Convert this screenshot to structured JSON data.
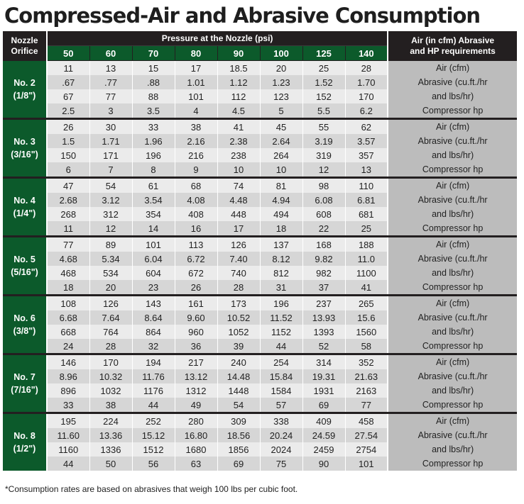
{
  "title": "Compressed-Air and Abrasive Consumption",
  "header": {
    "nozzle_label_line1": "Nozzle",
    "nozzle_label_line2": "Orifice",
    "pressure_label": "Pressure at the Nozzle (psi)",
    "requirements_line1": "Air (in cfm) Abrasive",
    "requirements_line2": "and HP requirements",
    "psi": [
      "50",
      "60",
      "70",
      "80",
      "90",
      "100",
      "125",
      "140"
    ]
  },
  "row_labels": [
    "Air (cfm)",
    "Abrasive (cu.ft./hr",
    "and lbs/hr)",
    "Compressor hp"
  ],
  "nozzles": [
    {
      "name": "No. 2",
      "size": "(1/8\")",
      "rows": [
        [
          "11",
          "13",
          "15",
          "17",
          "18.5",
          "20",
          "25",
          "28"
        ],
        [
          ".67",
          ".77",
          ".88",
          "1.01",
          "1.12",
          "1.23",
          "1.52",
          "1.70"
        ],
        [
          "67",
          "77",
          "88",
          "101",
          "112",
          "123",
          "152",
          "170"
        ],
        [
          "2.5",
          "3",
          "3.5",
          "4",
          "4.5",
          "5",
          "5.5",
          "6.2"
        ]
      ]
    },
    {
      "name": "No. 3",
      "size": "(3/16\")",
      "rows": [
        [
          "26",
          "30",
          "33",
          "38",
          "41",
          "45",
          "55",
          "62"
        ],
        [
          "1.5",
          "1.71",
          "1.96",
          "2.16",
          "2.38",
          "2.64",
          "3.19",
          "3.57"
        ],
        [
          "150",
          "171",
          "196",
          "216",
          "238",
          "264",
          "319",
          "357"
        ],
        [
          "6",
          "7",
          "8",
          "9",
          "10",
          "10",
          "12",
          "13"
        ]
      ]
    },
    {
      "name": "No. 4",
      "size": "(1/4\")",
      "rows": [
        [
          "47",
          "54",
          "61",
          "68",
          "74",
          "81",
          "98",
          "110"
        ],
        [
          "2.68",
          "3.12",
          "3.54",
          "4.08",
          "4.48",
          "4.94",
          "6.08",
          "6.81"
        ],
        [
          "268",
          "312",
          "354",
          "408",
          "448",
          "494",
          "608",
          "681"
        ],
        [
          "11",
          "12",
          "14",
          "16",
          "17",
          "18",
          "22",
          "25"
        ]
      ]
    },
    {
      "name": "No. 5",
      "size": "(5/16\")",
      "rows": [
        [
          "77",
          "89",
          "101",
          "113",
          "126",
          "137",
          "168",
          "188"
        ],
        [
          "4.68",
          "5.34",
          "6.04",
          "6.72",
          "7.40",
          "8.12",
          "9.82",
          "11.0"
        ],
        [
          "468",
          "534",
          "604",
          "672",
          "740",
          "812",
          "982",
          "1100"
        ],
        [
          "18",
          "20",
          "23",
          "26",
          "28",
          "31",
          "37",
          "41"
        ]
      ]
    },
    {
      "name": "No. 6",
      "size": "(3/8\")",
      "rows": [
        [
          "108",
          "126",
          "143",
          "161",
          "173",
          "196",
          "237",
          "265"
        ],
        [
          "6.68",
          "7.64",
          "8.64",
          "9.60",
          "10.52",
          "11.52",
          "13.93",
          "15.6"
        ],
        [
          "668",
          "764",
          "864",
          "960",
          "1052",
          "1152",
          "1393",
          "1560"
        ],
        [
          "24",
          "28",
          "32",
          "36",
          "39",
          "44",
          "52",
          "58"
        ]
      ]
    },
    {
      "name": "No. 7",
      "size": "(7/16\")",
      "rows": [
        [
          "146",
          "170",
          "194",
          "217",
          "240",
          "254",
          "314",
          "352"
        ],
        [
          "8.96",
          "10.32",
          "11.76",
          "13.12",
          "14.48",
          "15.84",
          "19.31",
          "21.63"
        ],
        [
          "896",
          "1032",
          "1176",
          "1312",
          "1448",
          "1584",
          "1931",
          "2163"
        ],
        [
          "33",
          "38",
          "44",
          "49",
          "54",
          "57",
          "69",
          "77"
        ]
      ]
    },
    {
      "name": "No. 8",
      "size": "(1/2\")",
      "rows": [
        [
          "195",
          "224",
          "252",
          "280",
          "309",
          "338",
          "409",
          "458"
        ],
        [
          "11.60",
          "13.36",
          "15.12",
          "16.80",
          "18.56",
          "20.24",
          "24.59",
          "27.54"
        ],
        [
          "1160",
          "1336",
          "1512",
          "1680",
          "1856",
          "2024",
          "2459",
          "2754"
        ],
        [
          "44",
          "50",
          "56",
          "63",
          "69",
          "75",
          "90",
          "101"
        ]
      ]
    }
  ],
  "footnote": "*Consumption rates are based on abrasives that weigh 100 lbs per cubic foot."
}
